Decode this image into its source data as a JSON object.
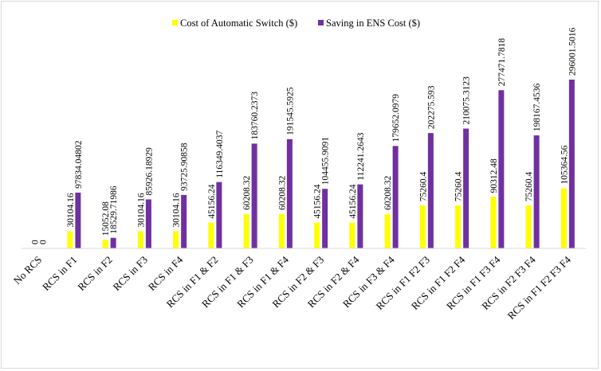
{
  "chart_data": {
    "type": "bar",
    "title": "",
    "xlabel": "",
    "ylabel": "",
    "grid": false,
    "legend_position": "top",
    "ylim": [
      0,
      300000
    ],
    "categories": [
      "No RCS",
      "RCS in F1",
      "RCS in F2",
      "RCS in F3",
      "RCS in F4",
      "RCS in F1 & F2",
      "RCS in F1 & F3",
      "RCS in F1 & F4",
      "RCS in F2 & F3",
      "RCS in F2 & F4",
      "RCS in F3 & F4",
      "RCS in F1 F2 F3",
      "RCS in F1 F2 F4",
      "RCS in F1 F3 F4",
      "RCS in F2 F3 F4",
      "RCS in F1 F2 F3 F4"
    ],
    "series": [
      {
        "name": "Cost of Automatic Switch ($)",
        "color": "#ffff00",
        "values": [
          0,
          30104.16,
          15052.08,
          30104.16,
          30104.16,
          45156.24,
          60208.32,
          60208.32,
          45156.24,
          45156.24,
          60208.32,
          75260.4,
          75260.4,
          90312.48,
          75260.4,
          105364.56
        ],
        "labels": [
          "0",
          "30104.16",
          "15052.08",
          "30104.16",
          "30104.16",
          "45156.24",
          "60208.32",
          "60208.32",
          "45156.24",
          "45156.24",
          "60208.32",
          "75260.4",
          "75260.4",
          "90312.48",
          "75260.4",
          "105364.56"
        ]
      },
      {
        "name": "Saving in ENS Cost ($)",
        "color": "#7030a0",
        "values": [
          0,
          97834.04802,
          18529.71986,
          85926.18929,
          93725.90858,
          116349.4037,
          183760.2373,
          191545.5925,
          104455.9091,
          112241.2643,
          179652.0979,
          202275.593,
          210075.3123,
          277471.7818,
          198167.4536,
          296001.5016
        ],
        "labels": [
          "0",
          "97834.04802",
          "18529.71986",
          "85926.18929",
          "93725.90858",
          "116349.4037",
          "183760.2373",
          "191545.5925",
          "104455.9091",
          "112241.2643",
          "179652.0979",
          "202275.593",
          "210075.3123",
          "277471.7818",
          "198167.4536",
          "296001.5016"
        ]
      }
    ]
  }
}
